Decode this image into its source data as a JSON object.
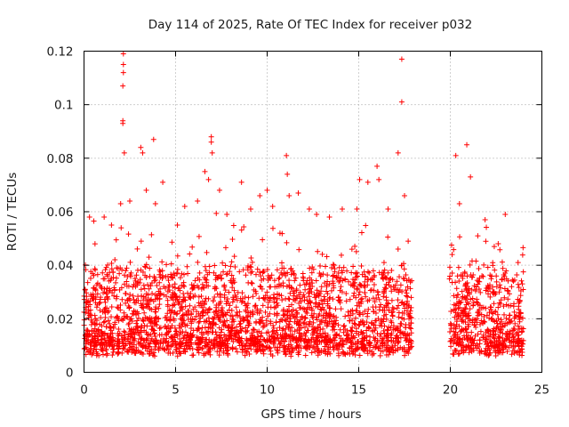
{
  "chart_data": {
    "type": "scatter",
    "title": "Day 114 of 2025, Rate Of TEC Index for receiver p032",
    "xlabel": "GPS time / hours",
    "ylabel": "ROTI / TECUs",
    "xlim": [
      0,
      25
    ],
    "ylim": [
      0,
      0.12
    ],
    "xticks": [
      0,
      5,
      10,
      15,
      20,
      25
    ],
    "xtick_labels": [
      "0",
      "5",
      "10",
      "15",
      "20",
      "25"
    ],
    "yticks": [
      0,
      0.02,
      0.04,
      0.06,
      0.08,
      0.1,
      0.12
    ],
    "ytick_labels": [
      "0",
      "0.02",
      "0.04",
      "0.06",
      "0.08",
      "0.1",
      "0.12"
    ],
    "grid": true,
    "marker": "+",
    "marker_color": "#ff0000",
    "data_gaps_hours": [
      [
        17.9,
        19.95
      ]
    ],
    "series": [
      {
        "name": "p032",
        "points": [
          [
            0.1,
            0.026
          ],
          [
            0.3,
            0.058
          ],
          [
            0.6,
            0.048
          ],
          [
            1.1,
            0.058
          ],
          [
            1.5,
            0.055
          ],
          [
            2.0,
            0.063
          ],
          [
            2.15,
            0.119
          ],
          [
            2.15,
            0.115
          ],
          [
            2.15,
            0.112
          ],
          [
            2.12,
            0.107
          ],
          [
            2.12,
            0.094
          ],
          [
            2.12,
            0.093
          ],
          [
            2.2,
            0.082
          ],
          [
            2.5,
            0.064
          ],
          [
            3.1,
            0.084
          ],
          [
            3.2,
            0.082
          ],
          [
            3.4,
            0.068
          ],
          [
            3.8,
            0.087
          ],
          [
            3.9,
            0.063
          ],
          [
            4.3,
            0.071
          ],
          [
            5.1,
            0.055
          ],
          [
            5.5,
            0.062
          ],
          [
            6.2,
            0.064
          ],
          [
            6.6,
            0.075
          ],
          [
            6.8,
            0.072
          ],
          [
            6.95,
            0.088
          ],
          [
            6.95,
            0.086
          ],
          [
            7.0,
            0.082
          ],
          [
            7.4,
            0.068
          ],
          [
            7.8,
            0.059
          ],
          [
            8.6,
            0.071
          ],
          [
            9.1,
            0.061
          ],
          [
            9.6,
            0.066
          ],
          [
            10.0,
            0.068
          ],
          [
            10.3,
            0.062
          ],
          [
            10.7,
            0.052
          ],
          [
            11.05,
            0.081
          ],
          [
            11.1,
            0.074
          ],
          [
            11.2,
            0.066
          ],
          [
            11.7,
            0.067
          ],
          [
            12.3,
            0.061
          ],
          [
            12.7,
            0.059
          ],
          [
            13.4,
            0.058
          ],
          [
            14.1,
            0.061
          ],
          [
            14.9,
            0.061
          ],
          [
            15.05,
            0.072
          ],
          [
            15.5,
            0.071
          ],
          [
            16.0,
            0.077
          ],
          [
            16.1,
            0.072
          ],
          [
            16.6,
            0.061
          ],
          [
            17.15,
            0.082
          ],
          [
            17.35,
            0.101
          ],
          [
            17.35,
            0.117
          ],
          [
            17.5,
            0.066
          ],
          [
            17.7,
            0.049
          ],
          [
            20.1,
            0.044
          ],
          [
            20.3,
            0.081
          ],
          [
            20.5,
            0.063
          ],
          [
            20.9,
            0.085
          ],
          [
            21.1,
            0.073
          ],
          [
            21.5,
            0.051
          ],
          [
            21.9,
            0.057
          ],
          [
            22.4,
            0.047
          ],
          [
            23.0,
            0.059
          ],
          [
            23.7,
            0.041
          ]
        ]
      }
    ]
  }
}
